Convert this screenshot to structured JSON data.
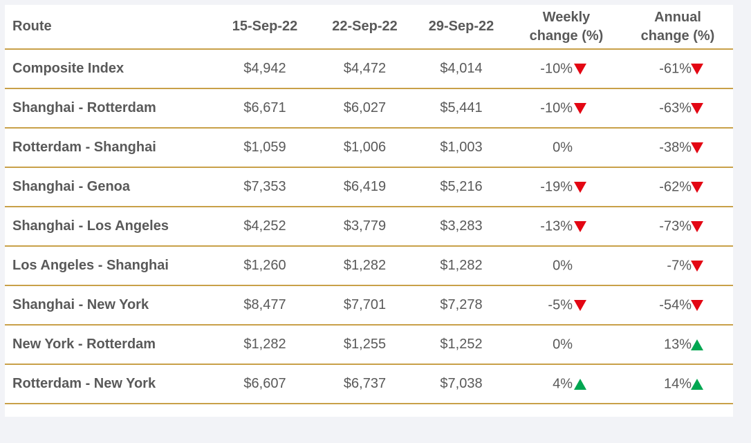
{
  "chart_data": {
    "type": "table",
    "columns": [
      "Route",
      "15-Sep-22",
      "22-Sep-22",
      "29-Sep-22",
      "Weekly change (%)",
      "Annual change (%)"
    ],
    "header": {
      "route": "Route",
      "d1": "15-Sep-22",
      "d2": "22-Sep-22",
      "d3": "29-Sep-22",
      "weekly_line1": "Weekly",
      "weekly_line2": "change (%)",
      "annual_line1": "Annual",
      "annual_line2": "change (%)"
    },
    "rows": [
      {
        "route": "Composite Index",
        "d1": "$4,942",
        "d2": "$4,472",
        "d3": "$4,014",
        "weekly": "-10%",
        "weekly_dir": "down",
        "annual": "-61%",
        "annual_dir": "down"
      },
      {
        "route": "Shanghai - Rotterdam",
        "d1": "$6,671",
        "d2": "$6,027",
        "d3": "$5,441",
        "weekly": "-10%",
        "weekly_dir": "down",
        "annual": "-63%",
        "annual_dir": "down"
      },
      {
        "route": "Rotterdam - Shanghai",
        "d1": "$1,059",
        "d2": "$1,006",
        "d3": "$1,003",
        "weekly": "0%",
        "weekly_dir": "none",
        "annual": "-38%",
        "annual_dir": "down"
      },
      {
        "route": "Shanghai - Genoa",
        "d1": "$7,353",
        "d2": "$6,419",
        "d3": "$5,216",
        "weekly": "-19%",
        "weekly_dir": "down",
        "annual": "-62%",
        "annual_dir": "down"
      },
      {
        "route": "Shanghai - Los Angeles",
        "d1": "$4,252",
        "d2": "$3,779",
        "d3": "$3,283",
        "weekly": "-13%",
        "weekly_dir": "down",
        "annual": "-73%",
        "annual_dir": "down"
      },
      {
        "route": "Los Angeles - Shanghai",
        "d1": "$1,260",
        "d2": "$1,282",
        "d3": "$1,282",
        "weekly": "0%",
        "weekly_dir": "none",
        "annual": "-7%",
        "annual_dir": "down"
      },
      {
        "route": "Shanghai - New York",
        "d1": "$8,477",
        "d2": "$7,701",
        "d3": "$7,278",
        "weekly": "-5%",
        "weekly_dir": "down",
        "annual": "-54%",
        "annual_dir": "down"
      },
      {
        "route": "New York - Rotterdam",
        "d1": "$1,282",
        "d2": "$1,255",
        "d3": "$1,252",
        "weekly": "0%",
        "weekly_dir": "none",
        "annual": "13%",
        "annual_dir": "up"
      },
      {
        "route": "Rotterdam - New York",
        "d1": "$6,607",
        "d2": "$6,737",
        "d3": "$7,038",
        "weekly": "4%",
        "weekly_dir": "up",
        "annual": "14%",
        "annual_dir": "up"
      }
    ]
  },
  "colors": {
    "text": "#595959",
    "rule": "#c8a048",
    "down_arrow": "#e30613",
    "up_arrow": "#00a651",
    "background": "#f2f3f7"
  },
  "icons": {
    "down": "red-down-triangle-icon",
    "up": "green-up-triangle-icon"
  }
}
